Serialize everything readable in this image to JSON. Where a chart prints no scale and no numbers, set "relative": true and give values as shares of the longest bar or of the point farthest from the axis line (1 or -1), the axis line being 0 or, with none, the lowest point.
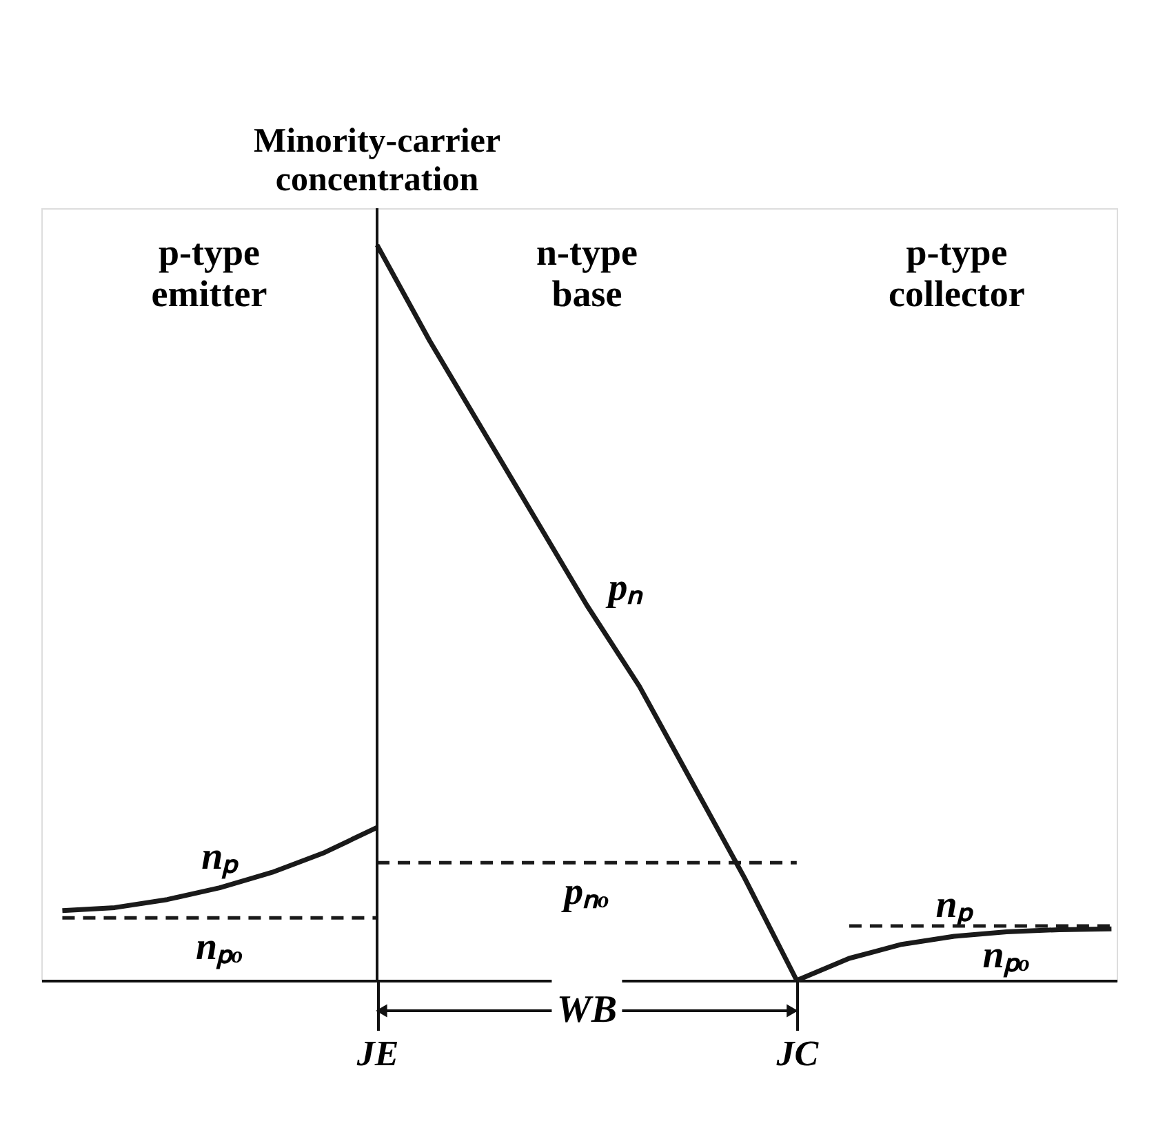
{
  "chart_data": {
    "type": "line",
    "relative": true,
    "ylabel": "Minority-carrier concentration",
    "grid": false,
    "marker": "none",
    "categories": [
      null,
      null,
      null,
      null,
      null,
      null,
      "JE",
      null,
      null,
      null,
      null,
      null,
      null,
      null,
      "JC",
      null,
      null,
      null,
      null,
      null,
      null
    ],
    "series": [
      {
        "name": "pₙ",
        "color": "#1a1a1a",
        "line_style": "solid",
        "values": [
          null,
          null,
          null,
          null,
          null,
          null,
          1.0,
          0.87,
          0.75,
          0.63,
          0.51,
          0.4,
          0.27,
          0.14,
          0,
          null,
          null,
          null,
          null,
          null,
          null
        ]
      },
      {
        "name": "nₚ",
        "color": "#1a1a1a",
        "line_style": "solid",
        "values": [
          0.095,
          0.099,
          0.11,
          0.126,
          0.147,
          0.174,
          0.208,
          null,
          null,
          null,
          null,
          null,
          null,
          null,
          null,
          null,
          null,
          null,
          null,
          null,
          null
        ]
      },
      {
        "name": "nₚ",
        "color": "#1a1a1a",
        "line_style": "solid",
        "values": [
          null,
          null,
          null,
          null,
          null,
          null,
          null,
          null,
          null,
          null,
          null,
          null,
          null,
          null,
          0,
          0.03,
          0.049,
          0.06,
          0.066,
          0.069,
          0.07
        ]
      },
      {
        "name": "pₙₒ",
        "color": "#1a1a1a",
        "line_style": "dashed",
        "values": [
          null,
          null,
          null,
          null,
          null,
          null,
          0.16,
          0.16,
          0.16,
          0.16,
          0.16,
          0.16,
          0.16,
          0.16,
          0.16,
          null,
          null,
          null,
          null,
          null,
          null
        ]
      },
      {
        "name": "nₚₒ",
        "color": "#1a1a1a",
        "line_style": "dashed",
        "values": [
          0.085,
          0.085,
          0.085,
          0.085,
          0.085,
          0.085,
          0.085,
          null,
          null,
          null,
          null,
          null,
          null,
          null,
          null,
          null,
          null,
          null,
          null,
          null,
          null
        ]
      },
      {
        "name": "nₚₒ",
        "color": "#1a1a1a",
        "line_style": "dashed",
        "values": [
          null,
          null,
          null,
          null,
          null,
          null,
          null,
          null,
          null,
          null,
          null,
          null,
          null,
          null,
          null,
          0.074,
          0.074,
          0.074,
          0.074,
          0.074,
          0.074
        ]
      }
    ],
    "ref_lines": [
      {
        "axis": "x",
        "value": "JE"
      }
    ],
    "annotations": [
      "p-type emitter",
      "n-type base",
      "p-type collector",
      "WB"
    ]
  }
}
